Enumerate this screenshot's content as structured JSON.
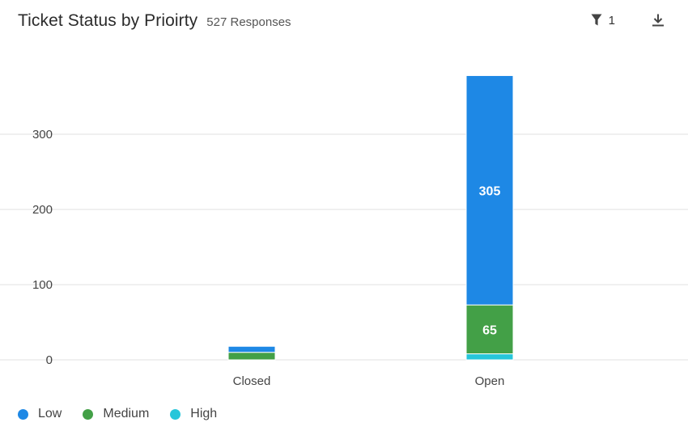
{
  "header": {
    "title": "Ticket Status by Prioirty",
    "responses": "527 Responses"
  },
  "toolbar": {
    "filter_icon": "filter-icon",
    "filter_count": "1",
    "download_icon": "download-icon"
  },
  "colors": {
    "low": "#1e88e5",
    "medium": "#43a047",
    "high": "#26c6da",
    "grid": "#e6e6e6"
  },
  "chart_data": {
    "type": "bar",
    "stacked": true,
    "title": "Ticket Status by Prioirty",
    "xlabel": "",
    "ylabel": "",
    "categories": [
      "Closed",
      "Open"
    ],
    "series": [
      {
        "name": "Low",
        "values": [
          8,
          305
        ],
        "labels": [
          "",
          "305"
        ]
      },
      {
        "name": "Medium",
        "values": [
          10,
          65
        ],
        "labels": [
          "",
          "65"
        ]
      },
      {
        "name": "High",
        "values": [
          0,
          8
        ],
        "labels": [
          "",
          ""
        ]
      }
    ],
    "yticks": [
      0,
      100,
      200,
      300
    ],
    "ylim": [
      0,
      380
    ],
    "grid": true,
    "legend": "bottom-left"
  }
}
